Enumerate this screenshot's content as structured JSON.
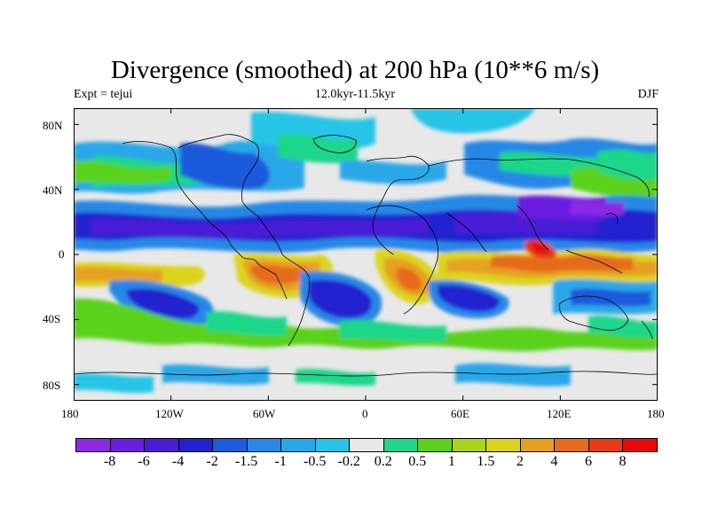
{
  "title": "Divergence (smoothed) at 200 hPa (10**6 m/s)",
  "subtitle_left": "Expt = tejui",
  "subtitle_center": "12.0kyr-11.5kyr",
  "subtitle_right": "DJF",
  "map": {
    "projection": "cylindrical equidistant",
    "lon_range": [
      -180,
      180
    ],
    "lat_range": [
      -90,
      90
    ],
    "x_ticks": [
      "180",
      "120W",
      "60W",
      "0",
      "60E",
      "120E",
      "180"
    ],
    "y_ticks": [
      "80N",
      "40N",
      "0",
      "40S",
      "80S"
    ],
    "background_color": "#e8e8e8"
  },
  "colorbar": {
    "levels": [
      "-8",
      "-6",
      "-4",
      "-2",
      "-1.5",
      "-1",
      "-0.5",
      "-0.2",
      "0.2",
      "0.5",
      "1",
      "1.5",
      "2",
      "4",
      "6",
      "8"
    ],
    "colors": [
      "#8a2be2",
      "#6a1ee0",
      "#4a1bd6",
      "#2222d0",
      "#1e5adc",
      "#2788e6",
      "#2aa7e8",
      "#28c4e6",
      "#e8e8e8",
      "#1fd68a",
      "#5ad21c",
      "#a8d41c",
      "#dcd41c",
      "#e6a020",
      "#e66a1c",
      "#e63a18",
      "#e60a0a"
    ]
  }
}
